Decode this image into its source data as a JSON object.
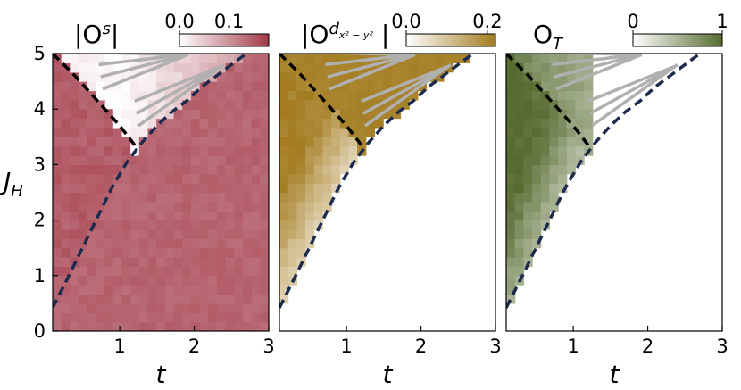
{
  "chart_data": {
    "type": "heatmap",
    "x": {
      "label": "t",
      "range": [
        0.1,
        3.0
      ],
      "ticks": [
        "1",
        "2",
        "3"
      ],
      "tick_values": [
        1,
        2,
        3
      ]
    },
    "y": {
      "label": "J_H",
      "range": [
        0,
        5
      ],
      "ticks": [
        "0",
        "1",
        "2",
        "3",
        "4",
        "5"
      ],
      "tick_values": [
        0,
        1,
        2,
        3,
        4,
        5
      ]
    },
    "grid_shape": [
      25,
      30
    ],
    "boundaries": {
      "phase_boundary_navy": [
        [
          0.1,
          0.42
        ],
        [
          0.3,
          0.95
        ],
        [
          0.5,
          1.5
        ],
        [
          0.7,
          2.05
        ],
        [
          0.9,
          2.6
        ],
        [
          1.1,
          3.05
        ],
        [
          1.3,
          3.4
        ],
        [
          1.5,
          3.7
        ],
        [
          1.7,
          3.95
        ],
        [
          1.9,
          4.15
        ],
        [
          2.1,
          4.4
        ],
        [
          2.3,
          4.6
        ],
        [
          2.5,
          4.8
        ],
        [
          2.7,
          5.0
        ]
      ],
      "upper_region_black": [
        [
          0.1,
          5.0
        ],
        [
          0.4,
          4.6
        ],
        [
          0.7,
          4.15
        ],
        [
          1.0,
          3.7
        ],
        [
          1.2,
          3.35
        ]
      ]
    },
    "panels": [
      {
        "title_main": "|O",
        "title_sup": "s",
        "title_close": "|",
        "colorbar_ticks": [
          {
            "label": "0.0",
            "value": 0.0
          },
          {
            "label": "0.1",
            "value": 0.1
          }
        ],
        "colorbar_range": [
          0,
          0.18
        ],
        "color_low": "#ffffff",
        "color_high": "#a23a48",
        "base_color": "#cf5d6b"
      },
      {
        "title_main": "|O",
        "title_sup": "d",
        "title_sup_sub": "x² − y²",
        "title_close": "|",
        "colorbar_ticks": [
          {
            "label": "0.0",
            "value": 0.0
          },
          {
            "label": "0.2",
            "value": 0.2
          }
        ],
        "colorbar_range": [
          0,
          0.22
        ],
        "color_low": "#ffffff",
        "color_high": "#a37c20",
        "base_color": "#d4a53a"
      },
      {
        "title_main": "O",
        "title_sub": "T",
        "colorbar_ticks": [
          {
            "label": "0",
            "value": 0
          },
          {
            "label": "1",
            "value": 1
          }
        ],
        "colorbar_range": [
          0,
          1
        ],
        "color_low": "#ffffff",
        "color_high": "#566b30",
        "base_color": "#8fb84e"
      }
    ],
    "colors": {
      "boundary_navy": "#1d2b4d",
      "boundary_black": "#000000",
      "hatch": "#b0b0b0"
    }
  }
}
